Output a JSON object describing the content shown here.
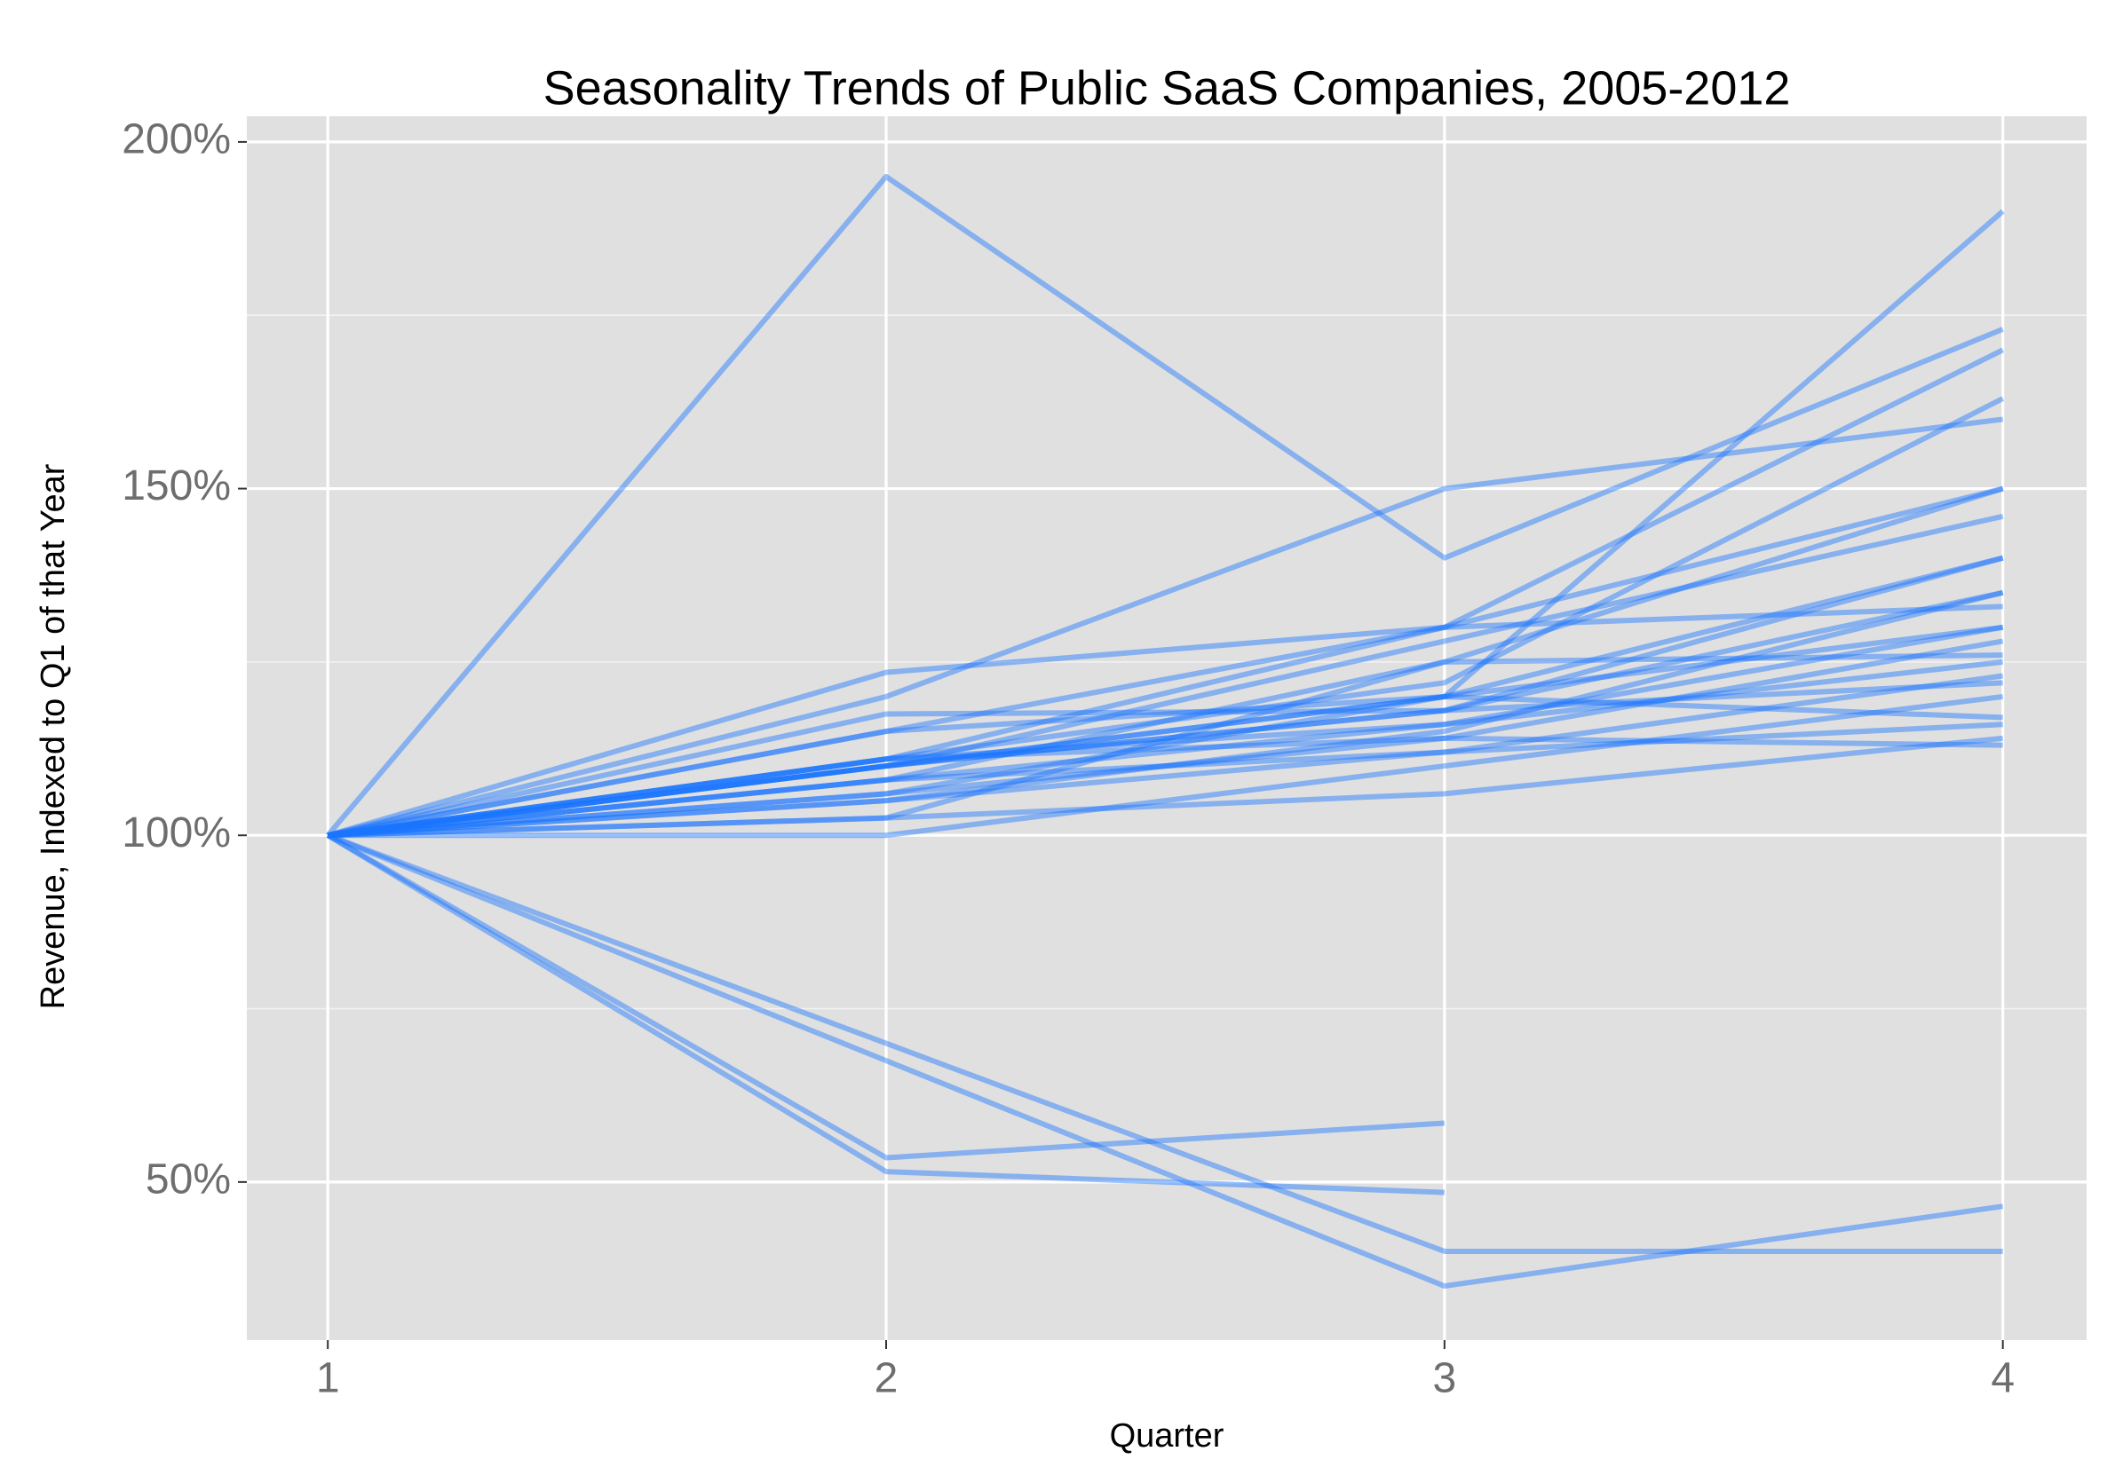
{
  "chart_data": {
    "type": "line",
    "title": "Seasonality Trends of Public SaaS Companies, 2005-2012",
    "x_label": "Quarter",
    "y_label": "Revenue, Indexed to Q1 of that Year",
    "x": [
      1,
      2,
      3,
      4
    ],
    "xlim": [
      0.855,
      4.15
    ],
    "xticks": [
      1,
      2,
      3,
      4
    ],
    "ylim": [
      27.2,
      203.7
    ],
    "yticks": [
      {
        "value": 50,
        "label": "50%"
      },
      {
        "value": 100,
        "label": "100%"
      },
      {
        "value": 150,
        "label": "150%"
      },
      {
        "value": 200,
        "label": "200%"
      }
    ],
    "yminorticks": [
      75,
      125,
      175
    ],
    "grid": true,
    "color": "#1a75ff",
    "line_alpha": 0.45,
    "series": [
      {
        "values": [
          100,
          195,
          140,
          173
        ]
      },
      {
        "values": [
          100,
          120,
          150,
          160
        ]
      },
      {
        "values": [
          100,
          123.5,
          130,
          170
        ]
      },
      {
        "values": [
          100,
          110,
          120,
          190
        ]
      },
      {
        "values": [
          100,
          111,
          122,
          163
        ]
      },
      {
        "values": [
          100,
          108,
          125,
          150
        ]
      },
      {
        "values": [
          100,
          115,
          130,
          150
        ]
      },
      {
        "values": [
          100,
          110,
          128,
          146
        ]
      },
      {
        "values": [
          100,
          117.5,
          118,
          140
        ]
      },
      {
        "values": [
          100,
          106,
          120,
          140
        ]
      },
      {
        "values": [
          100,
          110,
          118,
          135
        ]
      },
      {
        "values": [
          100,
          105,
          115,
          135
        ]
      },
      {
        "values": [
          100,
          111,
          130,
          133
        ]
      },
      {
        "values": [
          100,
          108,
          116,
          130
        ]
      },
      {
        "values": [
          100,
          110,
          120,
          130
        ]
      },
      {
        "values": [
          100,
          106,
          114,
          128
        ]
      },
      {
        "values": [
          100,
          102.5,
          125,
          126
        ]
      },
      {
        "values": [
          100,
          111,
          116,
          125
        ]
      },
      {
        "values": [
          100,
          100,
          110,
          120
        ]
      },
      {
        "values": [
          100,
          105,
          112,
          123
        ]
      },
      {
        "values": [
          100,
          110,
          118,
          122
        ]
      },
      {
        "values": [
          100,
          115,
          120,
          117
        ]
      },
      {
        "values": [
          100,
          108,
          112,
          116
        ]
      },
      {
        "values": [
          100,
          102.5,
          106,
          114
        ]
      },
      {
        "values": [
          100,
          111,
          114,
          113
        ]
      },
      {
        "values": [
          100,
          53.5,
          58.5,
          null
        ]
      },
      {
        "values": [
          100,
          51.5,
          48.5,
          null
        ]
      },
      {
        "values": [
          100,
          70,
          40,
          40
        ]
      },
      {
        "values": [
          100,
          67.5,
          35,
          46.5
        ]
      }
    ]
  }
}
